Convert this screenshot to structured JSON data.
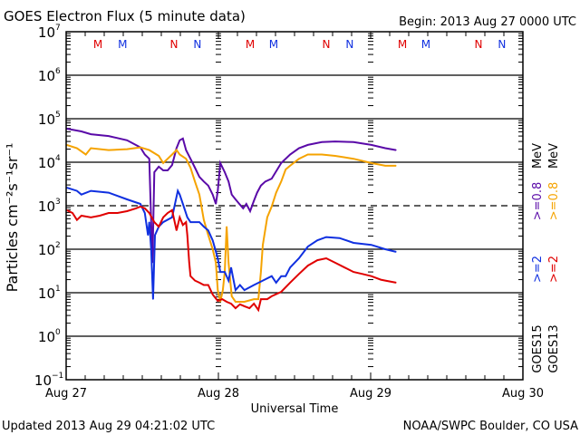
{
  "chart_data": {
    "type": "line",
    "title": "GOES Electron Flux (5 minute data)",
    "begin_label": "Begin: 2013 Aug 27 0000 UTC",
    "xlabel": "Universal Time",
    "ylabel": "Particles cm⁻²s⁻¹sr⁻¹",
    "x_unit": "hours since 2013 Aug 27 0000 UTC",
    "xlim": [
      0,
      72
    ],
    "x_ticks": [
      {
        "value": 0,
        "label": "Aug 27"
      },
      {
        "value": 24,
        "label": "Aug 28"
      },
      {
        "value": 48,
        "label": "Aug 29"
      },
      {
        "value": 72,
        "label": "Aug 30"
      }
    ],
    "yscale": "log",
    "ylim": [
      0.1,
      10000000
    ],
    "y_ticks": [
      {
        "exp": 7,
        "label": "10",
        "sup": "7"
      },
      {
        "exp": 6,
        "label": "10",
        "sup": "6"
      },
      {
        "exp": 5,
        "label": "10",
        "sup": "5"
      },
      {
        "exp": 4,
        "label": "10",
        "sup": "4"
      },
      {
        "exp": 3,
        "label": "10",
        "sup": "3"
      },
      {
        "exp": 2,
        "label": "10",
        "sup": "2"
      },
      {
        "exp": 1,
        "label": "10",
        "sup": "1"
      },
      {
        "exp": 0,
        "label": "10",
        "sup": "0"
      },
      {
        "exp": -1,
        "label": "10",
        "sup": "−1"
      }
    ],
    "gridlines_solid_exp": [
      6,
      5,
      4,
      2,
      1,
      0
    ],
    "threshold_dashed_exp": 3,
    "grid": true,
    "markers": [
      {
        "hour": 5,
        "label": "M",
        "color": "#e00000"
      },
      {
        "hour": 8.9,
        "label": "M",
        "color": "#1030e0"
      },
      {
        "hour": 17,
        "label": "N",
        "color": "#e00000"
      },
      {
        "hour": 20.7,
        "label": "N",
        "color": "#1030e0"
      },
      {
        "hour": 29,
        "label": "M",
        "color": "#e00000"
      },
      {
        "hour": 32.7,
        "label": "M",
        "color": "#1030e0"
      },
      {
        "hour": 41,
        "label": "N",
        "color": "#e00000"
      },
      {
        "hour": 44.7,
        "label": "N",
        "color": "#1030e0"
      },
      {
        "hour": 53,
        "label": "M",
        "color": "#e00000"
      },
      {
        "hour": 56.7,
        "label": "M",
        "color": "#1030e0"
      },
      {
        "hour": 65,
        "label": "N",
        "color": "#e00000"
      },
      {
        "hour": 68.7,
        "label": "N",
        "color": "#1030e0"
      }
    ],
    "legend_position": "right",
    "legend": [
      {
        "satellite": "GOES15",
        "channel": ">=2",
        "channel2": ">=0.8",
        "unit": "MeV",
        "color_ch1": "#1030e0",
        "color_ch2": "#5a0aa8"
      },
      {
        "satellite": "GOES13",
        "channel": ">=2",
        "channel2": ">=0.8",
        "unit": "MeV",
        "color_ch1": "#e00000",
        "color_ch2": "#f5a300"
      }
    ],
    "series": [
      {
        "name": "GOES15 >=0.8 MeV",
        "color": "#5a0aa8",
        "points": [
          [
            0.1,
            59000
          ],
          [
            2.4,
            51000
          ],
          [
            3.9,
            44000
          ],
          [
            6.7,
            40000
          ],
          [
            9.6,
            32000
          ],
          [
            11.7,
            22000
          ],
          [
            12.4,
            15000
          ],
          [
            13.1,
            12000
          ],
          [
            13.6,
            49
          ],
          [
            13.9,
            5900
          ],
          [
            14.6,
            7900
          ],
          [
            15.3,
            6500
          ],
          [
            16,
            6500
          ],
          [
            16.7,
            8600
          ],
          [
            17.4,
            21000
          ],
          [
            17.9,
            32000
          ],
          [
            18.4,
            35000
          ],
          [
            18.9,
            19000
          ],
          [
            19.6,
            12000
          ],
          [
            20.3,
            7500
          ],
          [
            21,
            4600
          ],
          [
            21.7,
            3600
          ],
          [
            22.4,
            2900
          ],
          [
            23.1,
            1800
          ],
          [
            23.6,
            1100
          ],
          [
            23.9,
            2200
          ],
          [
            24.3,
            9600
          ],
          [
            25,
            5900
          ],
          [
            25.6,
            3600
          ],
          [
            26.1,
            1800
          ],
          [
            26.7,
            1400
          ],
          [
            27.3,
            1100
          ],
          [
            27.9,
            870
          ],
          [
            28.4,
            1100
          ],
          [
            29,
            750
          ],
          [
            29.6,
            1300
          ],
          [
            30.1,
            2000
          ],
          [
            30.7,
            2900
          ],
          [
            31.4,
            3600
          ],
          [
            32.4,
            4200
          ],
          [
            33.9,
            9600
          ],
          [
            35.3,
            15000
          ],
          [
            36.7,
            21000
          ],
          [
            38.1,
            25000
          ],
          [
            40.3,
            29000
          ],
          [
            42.4,
            30000
          ],
          [
            45.3,
            29000
          ],
          [
            48.1,
            25000
          ],
          [
            50.3,
            21000
          ],
          [
            52,
            19000
          ]
        ]
      },
      {
        "name": "GOES13 >=0.8 MeV",
        "color": "#f5a300",
        "points": [
          [
            0.1,
            25000
          ],
          [
            1.7,
            21000
          ],
          [
            3.1,
            15000
          ],
          [
            3.9,
            21000
          ],
          [
            6.7,
            19000
          ],
          [
            9.6,
            20000
          ],
          [
            11.7,
            22000
          ],
          [
            13.1,
            19000
          ],
          [
            14.6,
            14000
          ],
          [
            15.3,
            9600
          ],
          [
            16,
            12000
          ],
          [
            16.7,
            15000
          ],
          [
            17.4,
            19000
          ],
          [
            17.9,
            15000
          ],
          [
            18.9,
            12000
          ],
          [
            19.6,
            7500
          ],
          [
            20.3,
            3600
          ],
          [
            21,
            1800
          ],
          [
            21.7,
            470
          ],
          [
            22.4,
            210
          ],
          [
            23.1,
            100
          ],
          [
            23.6,
            49
          ],
          [
            23.9,
            11.5
          ],
          [
            24.3,
            6.2
          ],
          [
            24.7,
            11.5
          ],
          [
            25,
            30
          ],
          [
            25.3,
            330
          ],
          [
            25.6,
            49
          ],
          [
            26.1,
            8.3
          ],
          [
            26.7,
            6.2
          ],
          [
            28.1,
            6.2
          ],
          [
            29.6,
            7.1
          ],
          [
            30.3,
            7.1
          ],
          [
            30.7,
            30
          ],
          [
            31,
            126
          ],
          [
            31.7,
            540
          ],
          [
            32.4,
            960
          ],
          [
            33.1,
            2000
          ],
          [
            33.9,
            3600
          ],
          [
            34.6,
            6800
          ],
          [
            35.3,
            8300
          ],
          [
            36.7,
            12000
          ],
          [
            38.1,
            15000
          ],
          [
            40.3,
            15000
          ],
          [
            42.4,
            14000
          ],
          [
            45.3,
            12000
          ],
          [
            48.1,
            9600
          ],
          [
            50.3,
            8300
          ],
          [
            52,
            8300
          ]
        ]
      },
      {
        "name": "GOES15 >=2 MeV",
        "color": "#1030e0",
        "points": [
          [
            0.1,
            2600
          ],
          [
            1.7,
            2200
          ],
          [
            2.4,
            1800
          ],
          [
            3.9,
            2200
          ],
          [
            6.7,
            2000
          ],
          [
            9.6,
            1400
          ],
          [
            11.7,
            1100
          ],
          [
            12.4,
            680
          ],
          [
            12.9,
            210
          ],
          [
            13.1,
            420
          ],
          [
            13.4,
            100
          ],
          [
            13.7,
            7.1
          ],
          [
            14,
            210
          ],
          [
            14.6,
            330
          ],
          [
            15.3,
            420
          ],
          [
            16.7,
            540
          ],
          [
            17.6,
            2200
          ],
          [
            17.9,
            1800
          ],
          [
            18.4,
            1100
          ],
          [
            19.1,
            540
          ],
          [
            19.6,
            420
          ],
          [
            21,
            420
          ],
          [
            21.7,
            330
          ],
          [
            22.4,
            270
          ],
          [
            23.1,
            160
          ],
          [
            23.9,
            62
          ],
          [
            24.3,
            30
          ],
          [
            25,
            30
          ],
          [
            25.6,
            19
          ],
          [
            26,
            38
          ],
          [
            26.4,
            19
          ],
          [
            26.7,
            11.5
          ],
          [
            27.4,
            15
          ],
          [
            28.1,
            11.5
          ],
          [
            29.6,
            15
          ],
          [
            31,
            19
          ],
          [
            32.4,
            24
          ],
          [
            33.1,
            17
          ],
          [
            33.9,
            24
          ],
          [
            34.6,
            24
          ],
          [
            35.3,
            38
          ],
          [
            36.7,
            62
          ],
          [
            38.1,
            115
          ],
          [
            39.6,
            160
          ],
          [
            41,
            190
          ],
          [
            43.1,
            180
          ],
          [
            45.3,
            140
          ],
          [
            48.1,
            126
          ],
          [
            50.3,
            100
          ],
          [
            52,
            87
          ]
        ]
      },
      {
        "name": "GOES13 >=2 MeV",
        "color": "#e00000",
        "points": [
          [
            0.1,
            790
          ],
          [
            1,
            680
          ],
          [
            1.7,
            470
          ],
          [
            2.4,
            590
          ],
          [
            3.9,
            540
          ],
          [
            5.3,
            590
          ],
          [
            6.7,
            680
          ],
          [
            8.1,
            680
          ],
          [
            9.6,
            750
          ],
          [
            11,
            870
          ],
          [
            11.7,
            960
          ],
          [
            12.4,
            870
          ],
          [
            13.1,
            680
          ],
          [
            13.9,
            420
          ],
          [
            14.6,
            330
          ],
          [
            15.3,
            540
          ],
          [
            16,
            680
          ],
          [
            16.7,
            790
          ],
          [
            17.4,
            270
          ],
          [
            17.9,
            540
          ],
          [
            18.4,
            360
          ],
          [
            18.9,
            420
          ],
          [
            19.1,
            210
          ],
          [
            19.4,
            49
          ],
          [
            19.6,
            24
          ],
          [
            20.3,
            19
          ],
          [
            21,
            17
          ],
          [
            21.7,
            15
          ],
          [
            22.4,
            15
          ],
          [
            23.1,
            9.1
          ],
          [
            23.9,
            6.5
          ],
          [
            24.6,
            7.1
          ],
          [
            25.3,
            6.2
          ],
          [
            26,
            5.6
          ],
          [
            26.7,
            4.4
          ],
          [
            27.4,
            5.4
          ],
          [
            28.1,
            4.9
          ],
          [
            28.9,
            4.4
          ],
          [
            29.6,
            5.6
          ],
          [
            30.3,
            4.0
          ],
          [
            30.7,
            7.1
          ],
          [
            31.7,
            7.1
          ],
          [
            32.4,
            8.3
          ],
          [
            33.9,
            10.5
          ],
          [
            35.3,
            17
          ],
          [
            36.7,
            27
          ],
          [
            38.1,
            42
          ],
          [
            39.6,
            56
          ],
          [
            41,
            62
          ],
          [
            42.4,
            49
          ],
          [
            43.9,
            38
          ],
          [
            45.3,
            30
          ],
          [
            46.7,
            27
          ],
          [
            48.1,
            24
          ],
          [
            49.6,
            20
          ],
          [
            50.3,
            19
          ],
          [
            52,
            17
          ]
        ]
      }
    ]
  },
  "footer": {
    "updated": "Updated 2013 Aug 29 04:21:02 UTC",
    "credit": "NOAA/SWPC Boulder, CO USA"
  }
}
